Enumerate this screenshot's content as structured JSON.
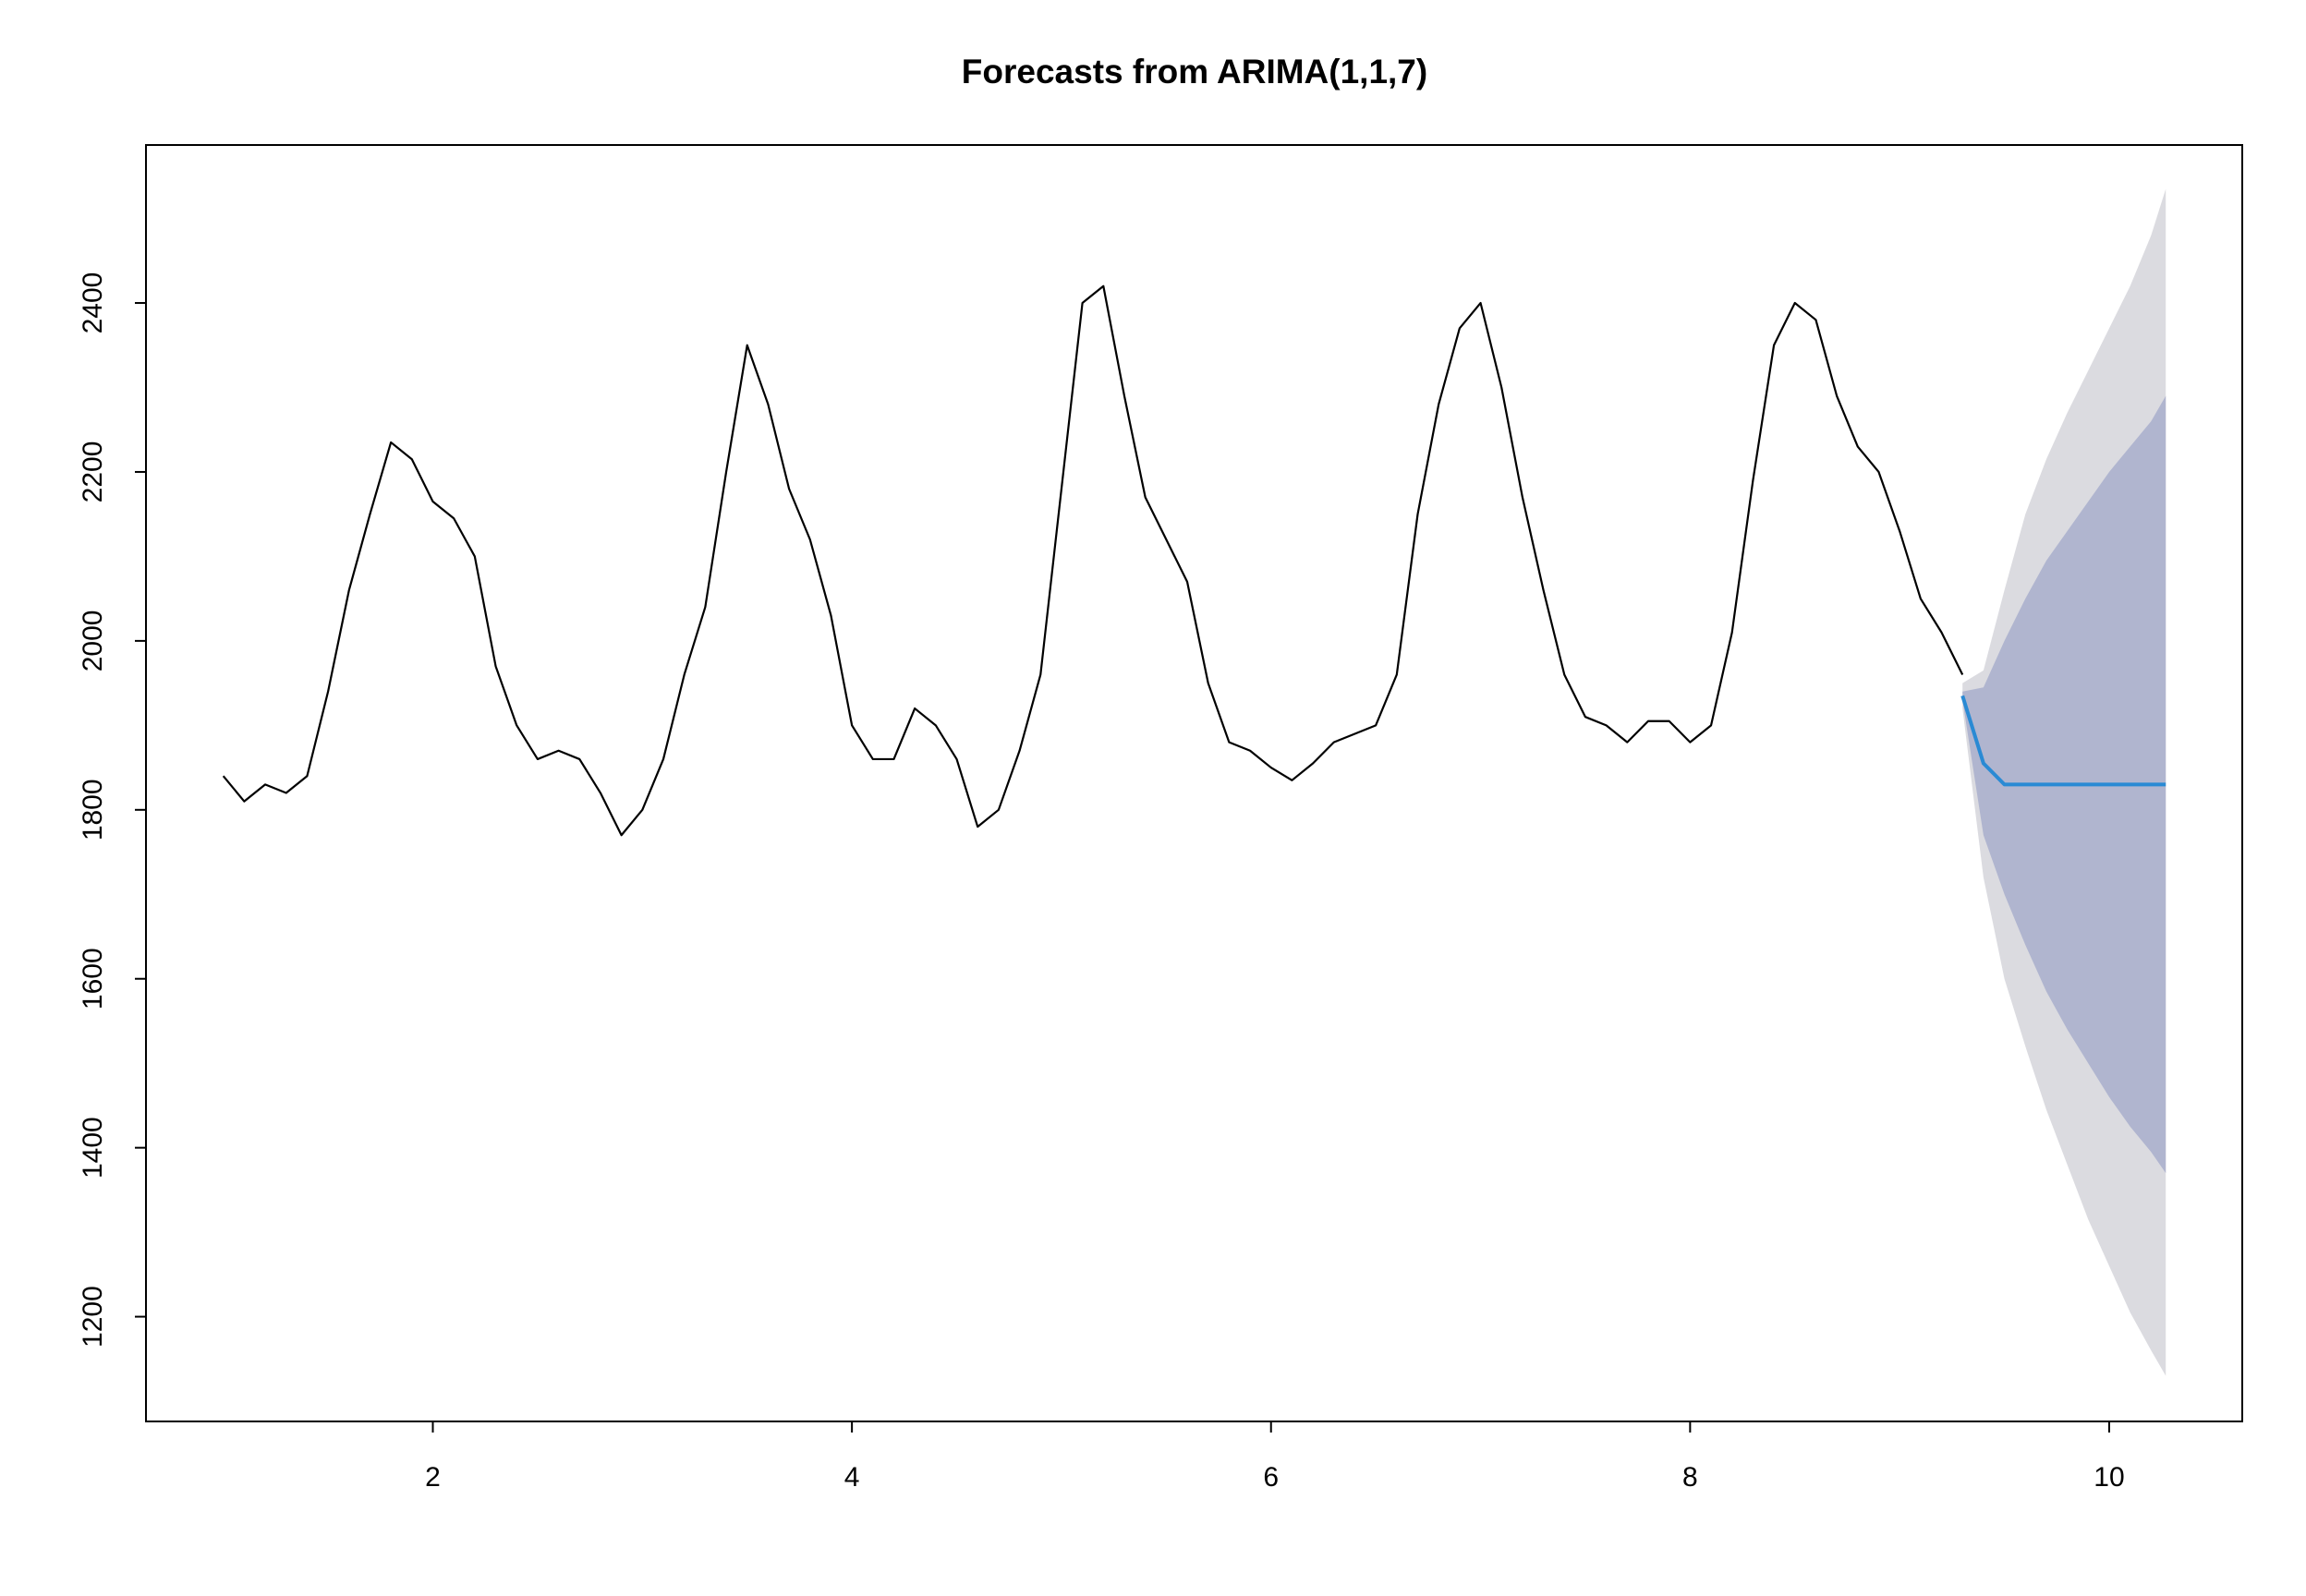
{
  "chart_data": {
    "type": "line",
    "title": "Forecasts from ARIMA(1,1,7)",
    "xlim": [
      0.631,
      10.635
    ],
    "ylim": [
      1076,
      2587
    ],
    "xticks": [
      2,
      4,
      6,
      8,
      10
    ],
    "yticks": [
      1200,
      1400,
      1600,
      1800,
      2000,
      2200,
      2400
    ],
    "bands": [
      {
        "color": "#dbdbe0",
        "x": [
          9.3,
          9.4,
          9.5,
          9.6,
          9.7,
          9.8,
          9.9,
          10.0,
          10.1,
          10.2,
          10.27
        ],
        "upper": [
          1950,
          1965,
          2060,
          2150,
          2215,
          2270,
          2320,
          2370,
          2420,
          2480,
          2535
        ],
        "lower": [
          1920,
          1720,
          1600,
          1520,
          1445,
          1380,
          1315,
          1260,
          1205,
          1160,
          1130
        ]
      },
      {
        "color": "#b0b5cf",
        "x": [
          9.3,
          9.4,
          9.5,
          9.6,
          9.7,
          9.8,
          9.9,
          10.0,
          10.1,
          10.2,
          10.27
        ],
        "upper": [
          1940,
          1945,
          2000,
          2050,
          2095,
          2130,
          2165,
          2200,
          2230,
          2260,
          2290
        ],
        "lower": [
          1930,
          1770,
          1700,
          1640,
          1585,
          1540,
          1500,
          1460,
          1425,
          1395,
          1370
        ]
      }
    ],
    "series": [
      {
        "color": "#000000",
        "x": [
          1.0,
          1.1,
          1.2,
          1.3,
          1.4,
          1.5,
          1.6,
          1.7,
          1.8,
          1.9,
          2.0,
          2.1,
          2.2,
          2.3,
          2.4,
          2.5,
          2.6,
          2.7,
          2.8,
          2.9,
          3.0,
          3.1,
          3.2,
          3.3,
          3.4,
          3.5,
          3.6,
          3.7,
          3.8,
          3.9,
          4.0,
          4.1,
          4.2,
          4.3,
          4.4,
          4.5,
          4.6,
          4.7,
          4.8,
          4.9,
          5.0,
          5.1,
          5.2,
          5.3,
          5.4,
          5.5,
          5.6,
          5.7,
          5.8,
          5.9,
          6.0,
          6.1,
          6.2,
          6.3,
          6.4,
          6.5,
          6.6,
          6.7,
          6.8,
          6.9,
          7.0,
          7.1,
          7.2,
          7.3,
          7.4,
          7.5,
          7.6,
          7.7,
          7.8,
          7.9,
          8.0,
          8.1,
          8.2,
          8.3,
          8.4,
          8.5,
          8.6,
          8.7,
          8.8,
          8.9,
          9.0,
          9.1,
          9.2,
          9.3
        ],
        "values": [
          1840,
          1810,
          1830,
          1820,
          1840,
          1940,
          2060,
          2150,
          2235,
          2215,
          2165,
          2145,
          2100,
          1970,
          1900,
          1860,
          1870,
          1860,
          1820,
          1770,
          1800,
          1860,
          1960,
          2040,
          2200,
          2350,
          2280,
          2180,
          2120,
          2030,
          1900,
          1860,
          1860,
          1920,
          1900,
          1860,
          1780,
          1800,
          1870,
          1960,
          2180,
          2400,
          2420,
          2290,
          2170,
          2120,
          2070,
          1950,
          1880,
          1870,
          1850,
          1835,
          1855,
          1880,
          1890,
          1900,
          1960,
          2150,
          2280,
          2370,
          2400,
          2300,
          2170,
          2060,
          1960,
          1910,
          1900,
          1880,
          1905,
          1905,
          1880,
          1900,
          2010,
          2190,
          2350,
          2400,
          2380,
          2290,
          2230,
          2200,
          2130,
          2050,
          2010,
          1960
        ]
      },
      {
        "color": "#2a8ad4",
        "x": [
          9.3,
          9.4,
          9.5,
          9.6,
          9.7,
          9.8,
          9.9,
          10.0,
          10.1,
          10.2,
          10.27
        ],
        "values": [
          1935,
          1855,
          1830,
          1830,
          1830,
          1830,
          1830,
          1830,
          1830,
          1830,
          1830
        ]
      }
    ]
  }
}
